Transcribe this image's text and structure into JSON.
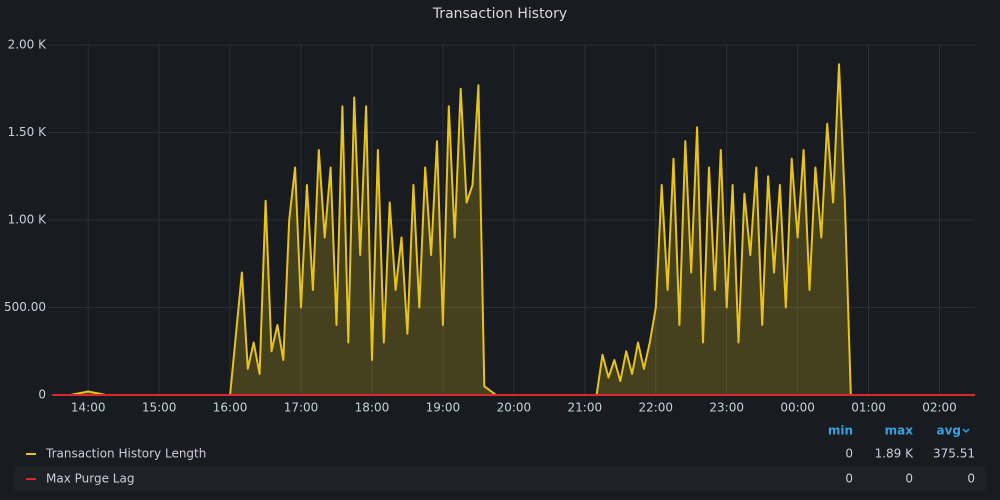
{
  "chart_data": {
    "type": "line",
    "title": "Transaction History",
    "x": [
      "13:30",
      "13:45",
      "14:00",
      "14:15",
      "14:30",
      "14:45",
      "15:00",
      "15:15",
      "15:30",
      "15:45",
      "16:00",
      "16:10",
      "16:15",
      "16:20",
      "16:25",
      "16:30",
      "16:35",
      "16:40",
      "16:45",
      "16:50",
      "16:55",
      "17:00",
      "17:05",
      "17:10",
      "17:15",
      "17:20",
      "17:25",
      "17:30",
      "17:35",
      "17:40",
      "17:45",
      "17:50",
      "17:55",
      "18:00",
      "18:05",
      "18:10",
      "18:15",
      "18:20",
      "18:25",
      "18:30",
      "18:35",
      "18:40",
      "18:45",
      "18:50",
      "18:55",
      "19:00",
      "19:05",
      "19:10",
      "19:15",
      "19:20",
      "19:25",
      "19:30",
      "19:35",
      "19:45",
      "20:00",
      "20:15",
      "20:30",
      "20:45",
      "21:00",
      "21:10",
      "21:15",
      "21:20",
      "21:25",
      "21:30",
      "21:35",
      "21:40",
      "21:45",
      "21:50",
      "21:55",
      "22:00",
      "22:05",
      "22:10",
      "22:15",
      "22:20",
      "22:25",
      "22:30",
      "22:35",
      "22:40",
      "22:45",
      "22:50",
      "22:55",
      "23:00",
      "23:05",
      "23:10",
      "23:15",
      "23:20",
      "23:25",
      "23:30",
      "23:35",
      "23:40",
      "23:45",
      "23:50",
      "23:55",
      "00:00",
      "00:05",
      "00:10",
      "00:15",
      "00:20",
      "00:25",
      "00:30",
      "00:35",
      "00:40",
      "00:45",
      "01:00",
      "01:15",
      "01:30",
      "01:45",
      "02:00",
      "02:15",
      "02:30"
    ],
    "series": [
      {
        "name": "Transaction History Length",
        "color": "#e8c31a",
        "values": [
          0,
          0,
          20,
          0,
          0,
          0,
          0,
          0,
          0,
          0,
          0,
          700,
          150,
          300,
          120,
          1110,
          250,
          400,
          200,
          1000,
          1300,
          500,
          1200,
          600,
          1400,
          900,
          1300,
          400,
          1650,
          300,
          1700,
          800,
          1650,
          200,
          1400,
          300,
          1100,
          600,
          900,
          350,
          1200,
          500,
          1300,
          800,
          1450,
          400,
          1650,
          900,
          1750,
          1100,
          1200,
          1770,
          50,
          0,
          0,
          0,
          0,
          0,
          0,
          0,
          230,
          100,
          200,
          80,
          250,
          120,
          300,
          150,
          300,
          500,
          1200,
          600,
          1350,
          400,
          1450,
          700,
          1530,
          300,
          1300,
          600,
          1400,
          500,
          1200,
          300,
          1150,
          800,
          1300,
          400,
          1250,
          700,
          1200,
          500,
          1350,
          900,
          1400,
          600,
          1300,
          900,
          1550,
          1100,
          1890,
          1100,
          0,
          0,
          0,
          0,
          0,
          0,
          0,
          0
        ],
        "stats": [
          0,
          {
            "value": 1890,
            "label": "1.89 K"
          },
          375.51
        ]
      },
      {
        "name": "Max Purge Lag",
        "color": "#d9292f",
        "values": [
          0,
          0,
          0,
          0,
          0,
          0,
          0,
          0,
          0,
          0,
          0,
          0,
          0,
          0,
          0,
          0,
          0,
          0,
          0,
          0,
          0,
          0,
          0,
          0,
          0,
          0,
          0,
          0,
          0,
          0,
          0,
          0,
          0,
          0,
          0,
          0,
          0,
          0,
          0,
          0,
          0,
          0,
          0,
          0,
          0,
          0,
          0,
          0,
          0,
          0,
          0,
          0,
          0,
          0,
          0,
          0,
          0,
          0,
          0,
          0,
          0,
          0,
          0,
          0,
          0,
          0,
          0,
          0,
          0,
          0,
          0,
          0,
          0,
          0,
          0,
          0,
          0,
          0,
          0,
          0,
          0,
          0,
          0,
          0,
          0,
          0,
          0,
          0,
          0,
          0,
          0,
          0,
          0,
          0,
          0,
          0,
          0,
          0,
          0,
          0,
          0,
          0,
          0,
          0,
          0,
          0,
          0,
          0,
          0,
          0
        ],
        "stats": [
          0,
          0,
          0
        ]
      }
    ],
    "legend_columns": [
      "min",
      "max",
      "avg"
    ],
    "xlim": [
      "13:26",
      "02:30"
    ],
    "xticks": [
      "14:00",
      "15:00",
      "16:00",
      "17:00",
      "18:00",
      "19:00",
      "20:00",
      "21:00",
      "22:00",
      "23:00",
      "00:00",
      "01:00",
      "02:00"
    ],
    "ylim": [
      0,
      2000
    ],
    "yticks": [
      0,
      {
        "value": 500,
        "label": "500.00"
      },
      {
        "value": 1000,
        "label": "1.00 K"
      },
      {
        "value": 1500,
        "label": "1.50 K"
      },
      {
        "value": 2000,
        "label": "2.00 K"
      }
    ],
    "grid": true,
    "fill_area": true
  }
}
